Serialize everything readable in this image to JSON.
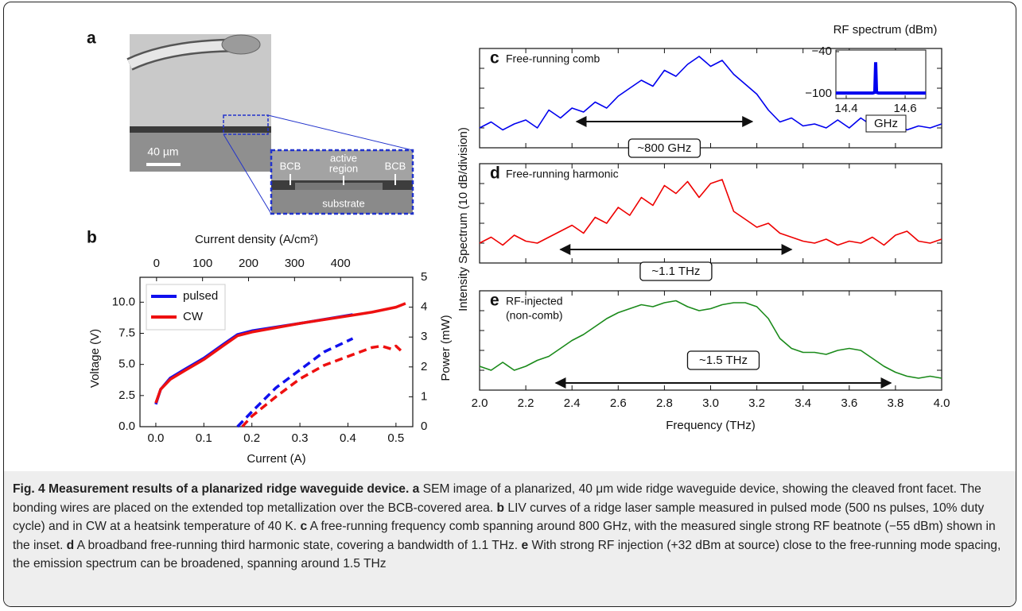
{
  "panel_a": {
    "label": "a",
    "scale_bar": "40 µm",
    "inset_labels": [
      "BCB",
      "active",
      "region",
      "BCB",
      "substrate"
    ]
  },
  "chart_data": [
    {
      "type": "line",
      "panel": "b",
      "xlabel": "Current (A)",
      "x2label": "Current density (A/cm²)",
      "ylabel": "Voltage (V)",
      "y2label": "Power (mW)",
      "xlim": [
        -0.033,
        0.535
      ],
      "x2lim": [
        -36,
        557
      ],
      "ylim": [
        0,
        12
      ],
      "y2lim": [
        0,
        5
      ],
      "xticks": [
        {
          "value": 0,
          "label": "0.0"
        },
        0.1,
        0.2,
        0.3,
        0.4,
        0.5
      ],
      "x2ticks": [
        0,
        100,
        200,
        300,
        400
      ],
      "yticks": [
        {
          "value": 0,
          "label": "0.0"
        },
        2.5,
        {
          "value": 5,
          "label": "5.0"
        },
        7.5,
        {
          "value": 10,
          "label": "10.0"
        }
      ],
      "y2ticks": [
        0,
        1,
        2,
        3,
        4,
        5
      ],
      "legend": "upper left",
      "series": [
        {
          "name": "pulsed",
          "color": "#1010ee",
          "x": [
            0,
            0.01,
            0.03,
            0.06,
            0.1,
            0.14,
            0.17,
            0.2,
            0.3,
            0.41
          ],
          "values": [
            1.8,
            3.0,
            3.9,
            4.6,
            5.5,
            6.6,
            7.4,
            7.7,
            8.3,
            9.0
          ]
        },
        {
          "name": "CW",
          "color": "#ee1010",
          "x": [
            0,
            0.01,
            0.03,
            0.06,
            0.1,
            0.14,
            0.17,
            0.2,
            0.3,
            0.4,
            0.45,
            0.5,
            0.52
          ],
          "values": [
            1.9,
            3.0,
            3.8,
            4.5,
            5.4,
            6.5,
            7.3,
            7.6,
            8.3,
            8.9,
            9.2,
            9.6,
            9.9
          ]
        },
        {
          "color": "#1010ee",
          "dash": true,
          "axis": "y2",
          "x": [
            0.17,
            0.2,
            0.25,
            0.3,
            0.35,
            0.41
          ],
          "values": [
            0,
            0.5,
            1.3,
            1.9,
            2.5,
            2.95
          ]
        },
        {
          "color": "#ee1010",
          "dash": true,
          "axis": "y2",
          "x": [
            0.18,
            0.2,
            0.25,
            0.3,
            0.35,
            0.4,
            0.45,
            0.47,
            0.49,
            0.5,
            0.51
          ],
          "values": [
            0,
            0.35,
            1.0,
            1.6,
            2.05,
            2.35,
            2.65,
            2.7,
            2.6,
            2.7,
            2.55
          ]
        }
      ]
    },
    {
      "type": "line",
      "panel": "c",
      "title": [
        "Free-running comb"
      ],
      "xlim": [
        2,
        4
      ],
      "ylim": [
        0,
        5
      ],
      "yticks": [
        1,
        2,
        3,
        4
      ],
      "x": [
        2,
        2.05,
        2.1,
        2.15,
        2.2,
        2.25,
        2.3,
        2.35,
        2.4,
        2.45,
        2.5,
        2.55,
        2.6,
        2.65,
        2.7,
        2.75,
        2.8,
        2.85,
        2.9,
        2.95,
        3,
        3.05,
        3.1,
        3.15,
        3.2,
        3.25,
        3.3,
        3.35,
        3.4,
        3.45,
        3.5,
        3.55,
        3.6,
        3.65,
        3.7,
        3.75,
        3.8,
        3.85,
        3.9,
        3.95,
        4
      ],
      "series": [
        {
          "color": "#0000ee",
          "values": [
            1.0,
            1.3,
            0.9,
            1.2,
            1.4,
            1.0,
            1.9,
            1.5,
            2.0,
            1.8,
            2.3,
            2.0,
            2.6,
            3.0,
            3.4,
            3.1,
            3.9,
            3.6,
            4.2,
            4.6,
            4.1,
            4.4,
            3.7,
            3.2,
            2.7,
            1.9,
            1.3,
            1.5,
            1.1,
            1.2,
            1.0,
            1.4,
            1.0,
            1.5,
            1.1,
            1.0,
            1.3,
            0.9,
            1.1,
            1.0,
            1.2
          ]
        }
      ],
      "annotation": {
        "text": "~800 GHz",
        "span": [
          2.42,
          3.18
        ]
      }
    },
    {
      "type": "line",
      "panel": "d",
      "title": [
        "Free-running harmonic"
      ],
      "xlim": [
        2,
        4
      ],
      "ylim": [
        0,
        5
      ],
      "yticks": [
        1,
        2,
        3,
        4
      ],
      "x": [
        2,
        2.05,
        2.1,
        2.15,
        2.2,
        2.25,
        2.3,
        2.35,
        2.4,
        2.45,
        2.5,
        2.55,
        2.6,
        2.65,
        2.7,
        2.75,
        2.8,
        2.85,
        2.9,
        2.95,
        3,
        3.05,
        3.1,
        3.15,
        3.2,
        3.25,
        3.3,
        3.35,
        3.4,
        3.45,
        3.5,
        3.55,
        3.6,
        3.65,
        3.7,
        3.75,
        3.8,
        3.85,
        3.9,
        3.95,
        4
      ],
      "series": [
        {
          "color": "#ee0000",
          "values": [
            1.0,
            1.3,
            0.9,
            1.4,
            1.1,
            1.0,
            1.3,
            1.6,
            1.9,
            1.5,
            2.3,
            2.0,
            2.8,
            2.4,
            3.3,
            2.9,
            3.9,
            3.5,
            4.1,
            3.3,
            4.0,
            4.2,
            2.6,
            2.2,
            1.8,
            2.0,
            1.5,
            1.3,
            1.1,
            1.0,
            1.2,
            0.9,
            1.1,
            1.0,
            1.3,
            0.9,
            1.4,
            1.6,
            1.1,
            1.0,
            1.2
          ]
        }
      ],
      "annotation": {
        "text": "~1.1 THz",
        "span": [
          2.35,
          3.35
        ]
      }
    },
    {
      "type": "line",
      "panel": "e",
      "title": [
        "RF-injected",
        "(non-comb)"
      ],
      "xlabel": "Frequency (THz)",
      "ylabel": "Intensity Spectrum (10 dB/division)",
      "xlim": [
        2,
        4
      ],
      "ylim": [
        0,
        5
      ],
      "yticks": [
        1,
        2,
        3,
        4
      ],
      "xticks": [
        {
          "value": 2,
          "label": "2.0"
        },
        2.2,
        2.4,
        2.6,
        2.8,
        {
          "value": 3,
          "label": "3.0"
        },
        3.2,
        3.4,
        3.6,
        3.8,
        {
          "value": 4,
          "label": "4.0"
        }
      ],
      "x": [
        2,
        2.05,
        2.1,
        2.15,
        2.2,
        2.25,
        2.3,
        2.35,
        2.4,
        2.45,
        2.5,
        2.55,
        2.6,
        2.65,
        2.7,
        2.75,
        2.8,
        2.85,
        2.9,
        2.95,
        3,
        3.05,
        3.1,
        3.15,
        3.2,
        3.25,
        3.3,
        3.35,
        3.4,
        3.45,
        3.5,
        3.55,
        3.6,
        3.65,
        3.7,
        3.75,
        3.8,
        3.85,
        3.9,
        3.95,
        4
      ],
      "series": [
        {
          "color": "#1a8a1a",
          "values": [
            1.2,
            1.0,
            1.4,
            1.0,
            1.2,
            1.5,
            1.7,
            2.1,
            2.5,
            2.8,
            3.2,
            3.6,
            3.9,
            4.1,
            4.3,
            4.2,
            4.4,
            4.5,
            4.2,
            4.0,
            4.1,
            4.3,
            4.4,
            4.4,
            4.2,
            3.6,
            2.6,
            2.1,
            1.9,
            1.9,
            1.8,
            2.0,
            2.1,
            2.0,
            1.6,
            1.2,
            0.9,
            0.7,
            0.6,
            0.7,
            0.6
          ]
        }
      ],
      "annotation": {
        "text": "~1.5 THz",
        "span": [
          2.33,
          3.78
        ]
      }
    },
    {
      "type": "line",
      "title": [
        "RF spectrum (dBm)"
      ],
      "xlabel": "GHz",
      "xlim": [
        14.365,
        14.67
      ],
      "ylim": [
        -106.8,
        -37.7
      ],
      "xticks": [
        14.4,
        14.6
      ],
      "yticks": [
        {
          "value": -40,
          "label": "−40"
        },
        {
          "value": -100,
          "label": "−100"
        }
      ],
      "x": [
        14.365,
        14.49,
        14.497,
        14.5,
        14.503,
        14.51,
        14.67
      ],
      "series": [
        {
          "color": "#0000ee",
          "values": [
            -99,
            -99,
            -98,
            -55,
            -98,
            -99,
            -99
          ]
        }
      ]
    }
  ],
  "caption": [
    {
      "text": "Fig. 4 Measurement results of a planarized ridge waveguide device.",
      "bold": true
    },
    {
      "text": "a",
      "bold": true
    },
    {
      "text": " SEM image of a planarized, 40 μm wide ridge waveguide device, showing the cleaved front facet. The bonding wires are placed on the extended top metallization over the BCB-covered area. ",
      "bold": false
    },
    {
      "text": "b",
      "bold": true
    },
    {
      "text": " LIV curves of a ridge laser sample measured in pulsed mode (500 ns pulses, 10% duty cycle) and in CW at a heatsink temperature of 40 K. ",
      "bold": false
    },
    {
      "text": "c",
      "bold": true
    },
    {
      "text": " A free-running frequency comb spanning around 800 GHz, with the measured single strong RF beatnote (−55 dBm) shown in the inset. ",
      "bold": false
    },
    {
      "text": "d",
      "bold": true
    },
    {
      "text": " A broadband free-running third harmonic state, covering a bandwidth of 1.1 THz. ",
      "bold": false
    },
    {
      "text": "e",
      "bold": true
    },
    {
      "text": " With strong RF injection (+32 dBm at source) close to the free-running mode spacing, the emission spectrum can be broadened, spanning around 1.5 THz",
      "bold": false
    }
  ]
}
